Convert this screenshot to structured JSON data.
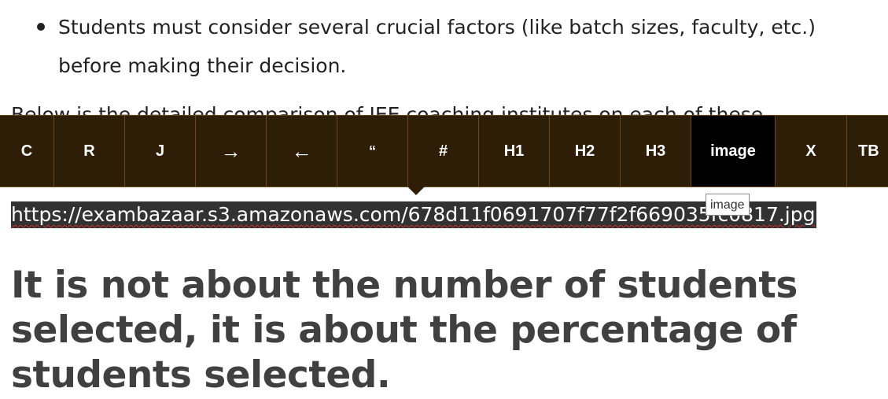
{
  "content": {
    "bullet_text": "Students must consider several crucial factors (like batch sizes, faculty, etc.) before making their decision.",
    "hidden_line": "Below is the detailed comparison of JEE coaching institutes on each of these",
    "url": "https://exambazaar.s3.amazonaws.com/678d11f0691707f77f2f669035fc0817.jpg",
    "heading": "It is not about the number of students selected, it is about the percentage of students selected."
  },
  "toolbar": {
    "buttons": [
      {
        "label": "C"
      },
      {
        "label": "R"
      },
      {
        "label": "J"
      },
      {
        "label": "→"
      },
      {
        "label": "←"
      },
      {
        "label": "“"
      },
      {
        "label": "#"
      },
      {
        "label": "H1"
      },
      {
        "label": "H2"
      },
      {
        "label": "H3"
      },
      {
        "label": "image"
      },
      {
        "label": "X"
      },
      {
        "label": "TB"
      }
    ],
    "active": "image"
  },
  "tooltip": {
    "text": "image"
  },
  "colors": {
    "toolbar_bg": "#2e1d07",
    "toolbar_border": "#6a4a1c",
    "active_button_bg": "#000000",
    "selection_bg": "#323232",
    "heading_color": "#404040"
  }
}
